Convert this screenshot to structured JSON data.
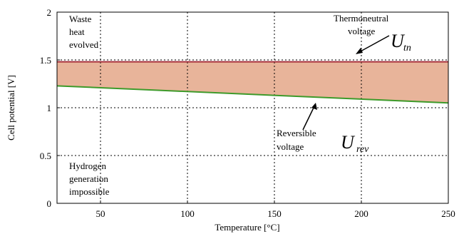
{
  "chart_data": {
    "type": "line",
    "xlabel": "Temperature [°C]",
    "ylabel": "Cell potential [V]",
    "xlim": [
      25,
      250
    ],
    "ylim": [
      0,
      2
    ],
    "x_ticks": [
      50,
      100,
      150,
      200,
      250
    ],
    "y_ticks": [
      0,
      0.5,
      1,
      1.5,
      2
    ],
    "y_tick_labels": [
      "0",
      "0.5",
      "1",
      "1.5",
      "2"
    ],
    "grid": true,
    "series": [
      {
        "x": [
          25,
          250
        ],
        "values": [
          1.48,
          1.48
        ],
        "color": "#a8323e"
      },
      {
        "x": [
          25,
          250
        ],
        "values": [
          1.229,
          1.05
        ],
        "color": "#3d9a2a"
      }
    ],
    "fill_between": {
      "color": "#e8b49a"
    },
    "annotations": {
      "waste_heat": [
        "Waste",
        "heat",
        "evolved"
      ],
      "hydrogen": [
        "Hydrogen",
        "generation",
        "impossible"
      ],
      "thermoneutral": [
        "Thermoneutral",
        "voltage"
      ],
      "reversible": [
        "Reversible",
        "voltage"
      ],
      "u_tn_main": "U",
      "u_tn_sub": "tn",
      "u_rev_main": "U",
      "u_rev_sub": "rev"
    }
  }
}
